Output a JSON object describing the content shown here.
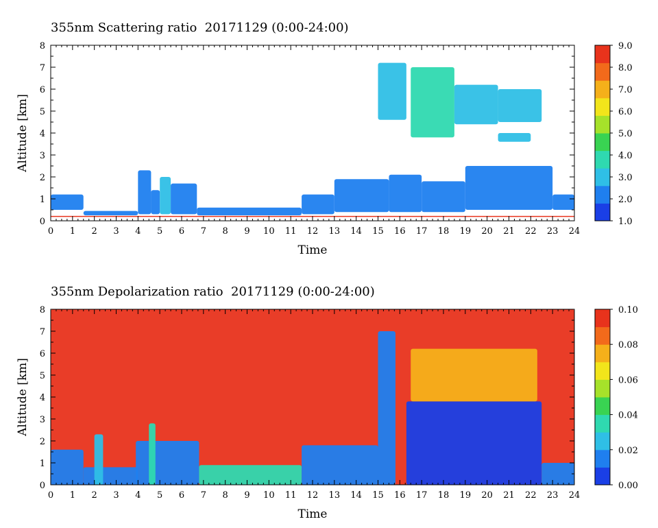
{
  "colors": {
    "colormap": [
      "#1a3fe6",
      "#1f7fef",
      "#2fbfe6",
      "#2fd9b0",
      "#39d352",
      "#a6e22a",
      "#f2e51b",
      "#f5b01a",
      "#f26a1b",
      "#e8331c"
    ],
    "background": "#ffffff",
    "ground_line": "#e8331c"
  },
  "chart_data": [
    {
      "type": "heatmap",
      "title": "355nm Scattering ratio  20171129 (0:00-24:00)",
      "xlabel": "Time",
      "ylabel": "Altitude [km]",
      "xlim": [
        0,
        24
      ],
      "ylim": [
        0,
        8
      ],
      "x_ticks": [
        "0",
        "1",
        "2",
        "3",
        "4",
        "5",
        "6",
        "7",
        "8",
        "9",
        "10",
        "11",
        "12",
        "13",
        "14",
        "15",
        "16",
        "17",
        "18",
        "19",
        "20",
        "21",
        "22",
        "23",
        "24"
      ],
      "y_ticks": [
        "0",
        "1",
        "2",
        "3",
        "4",
        "5",
        "6",
        "7",
        "8"
      ],
      "colorbar": {
        "min": 1.0,
        "max": 9.0,
        "tick_labels": [
          "9.0",
          "8.0",
          "7.0",
          "6.0",
          "5.0",
          "4.0",
          "3.0",
          "2.0",
          "1.0"
        ]
      },
      "features": [
        {
          "x": [
            0.0,
            1.5
          ],
          "y": [
            0.5,
            1.2
          ],
          "value": 2.5
        },
        {
          "x": [
            1.5,
            4.0
          ],
          "y": [
            0.25,
            0.45
          ],
          "value": 2.0
        },
        {
          "x": [
            4.0,
            4.6
          ],
          "y": [
            0.3,
            2.3
          ],
          "value": 2.4
        },
        {
          "x": [
            4.6,
            5.0
          ],
          "y": [
            0.3,
            1.4
          ],
          "value": 2.2
        },
        {
          "x": [
            5.0,
            5.5
          ],
          "y": [
            0.3,
            2.0
          ],
          "value": 2.6
        },
        {
          "x": [
            5.5,
            6.7
          ],
          "y": [
            0.3,
            1.7
          ],
          "value": 2.4
        },
        {
          "x": [
            6.7,
            11.5
          ],
          "y": [
            0.25,
            0.6
          ],
          "value": 2.0
        },
        {
          "x": [
            11.5,
            13.0
          ],
          "y": [
            0.3,
            1.2
          ],
          "value": 2.2
        },
        {
          "x": [
            13.0,
            15.5
          ],
          "y": [
            0.4,
            1.9
          ],
          "value": 2.0
        },
        {
          "x": [
            15.5,
            17.0
          ],
          "y": [
            0.4,
            2.1
          ],
          "value": 1.8
        },
        {
          "x": [
            17.0,
            19.0
          ],
          "y": [
            0.4,
            1.8
          ],
          "value": 1.8
        },
        {
          "x": [
            19.0,
            23.0
          ],
          "y": [
            0.5,
            2.5
          ],
          "value": 2.0
        },
        {
          "x": [
            23.0,
            24.0
          ],
          "y": [
            0.5,
            1.2
          ],
          "value": 2.4
        },
        {
          "x": [
            15.0,
            16.3
          ],
          "y": [
            4.6,
            7.2
          ],
          "value": 3.2
        },
        {
          "x": [
            16.5,
            18.5
          ],
          "y": [
            3.8,
            7.0
          ],
          "value": 3.4
        },
        {
          "x": [
            18.5,
            20.5
          ],
          "y": [
            4.4,
            6.2
          ],
          "value": 3.2
        },
        {
          "x": [
            20.5,
            22.5
          ],
          "y": [
            4.5,
            6.0
          ],
          "value": 3.0
        },
        {
          "x": [
            20.5,
            22.0
          ],
          "y": [
            3.6,
            4.0
          ],
          "value": 3.0
        }
      ]
    },
    {
      "type": "heatmap",
      "title": "355nm Depolarization ratio  20171129 (0:00-24:00)",
      "xlabel": "Time",
      "ylabel": "Altitude [km]",
      "xlim": [
        0,
        24
      ],
      "ylim": [
        0,
        8
      ],
      "x_ticks": [
        "0",
        "1",
        "2",
        "3",
        "4",
        "5",
        "6",
        "7",
        "8",
        "9",
        "10",
        "11",
        "12",
        "13",
        "14",
        "15",
        "16",
        "17",
        "18",
        "19",
        "20",
        "21",
        "22",
        "23",
        "24"
      ],
      "y_ticks": [
        "0",
        "1",
        "2",
        "3",
        "4",
        "5",
        "6",
        "7",
        "8"
      ],
      "colorbar": {
        "min": 0.0,
        "max": 0.1,
        "tick_labels": [
          "0.10",
          "0.08",
          "0.06",
          "0.04",
          "0.02",
          "0.00"
        ]
      },
      "features": [
        {
          "x": [
            0.0,
            24.0
          ],
          "y": [
            0.0,
            8.0
          ],
          "value": 0.09
        },
        {
          "x": [
            0.0,
            1.5
          ],
          "y": [
            0.0,
            1.6
          ],
          "value": 0.015
        },
        {
          "x": [
            1.5,
            4.0
          ],
          "y": [
            0.0,
            0.8
          ],
          "value": 0.02
        },
        {
          "x": [
            2.0,
            2.4
          ],
          "y": [
            0.0,
            2.3
          ],
          "value": 0.025
        },
        {
          "x": [
            3.9,
            6.8
          ],
          "y": [
            0.0,
            2.0
          ],
          "value": 0.02
        },
        {
          "x": [
            4.5,
            4.8
          ],
          "y": [
            0.0,
            2.8
          ],
          "value": 0.03
        },
        {
          "x": [
            6.8,
            11.5
          ],
          "y": [
            0.0,
            0.9
          ],
          "value": 0.03
        },
        {
          "x": [
            11.5,
            15.0
          ],
          "y": [
            0.0,
            1.8
          ],
          "value": 0.015
        },
        {
          "x": [
            15.0,
            15.8
          ],
          "y": [
            0.0,
            7.0
          ],
          "value": 0.015
        },
        {
          "x": [
            16.3,
            22.5
          ],
          "y": [
            0.0,
            3.8
          ],
          "value": 0.01
        },
        {
          "x": [
            16.5,
            22.3
          ],
          "y": [
            3.8,
            6.2
          ],
          "value": 0.075
        },
        {
          "x": [
            22.5,
            24.0
          ],
          "y": [
            0.0,
            1.0
          ],
          "value": 0.015
        }
      ]
    }
  ]
}
